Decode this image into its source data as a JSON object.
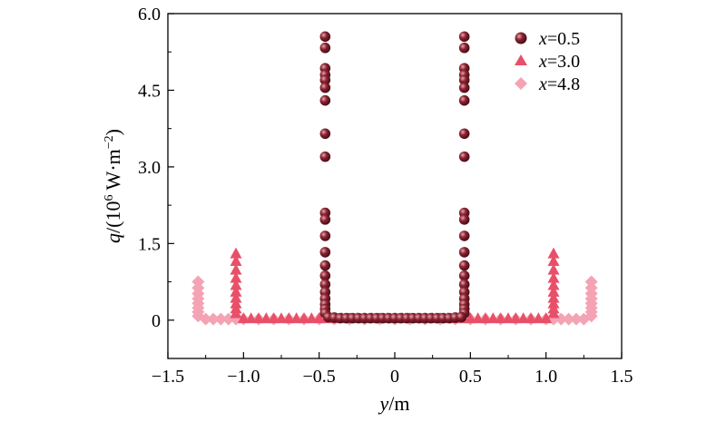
{
  "chart_data": {
    "type": "scatter",
    "xlabel": {
      "var": "y",
      "unit": "/m"
    },
    "ylabel": {
      "var": "q",
      "unit_prefix": "/(10",
      "unit_exp": "6",
      "unit_mid": " W·m",
      "unit_exp2": "−2",
      "unit_suffix": ")"
    },
    "xlim": [
      -1.5,
      1.5
    ],
    "ylim": [
      -0.75,
      6.0
    ],
    "xticks": [
      -1.5,
      -1.0,
      -0.5,
      0,
      0.5,
      1.0,
      1.5
    ],
    "xtick_labels": [
      "−1.5",
      "−1.0",
      "−0.5",
      "0",
      "0.5",
      "1.0",
      "1.5"
    ],
    "yticks": [
      0,
      1.5,
      3.0,
      4.5,
      6.0
    ],
    "ytick_labels": [
      "0",
      "1.5",
      "3.0",
      "4.5",
      "6.0"
    ],
    "grid": false,
    "legend_position": "top-right",
    "series": [
      {
        "name": "x=0.5",
        "legend_var": "x",
        "legend_val": "=0.5",
        "marker": "sphere",
        "color": "#7a1e2a",
        "points": [
          [
            -0.46,
            5.55
          ],
          [
            -0.46,
            5.33
          ],
          [
            -0.46,
            4.93
          ],
          [
            -0.46,
            4.8
          ],
          [
            -0.46,
            4.7
          ],
          [
            -0.46,
            4.55
          ],
          [
            -0.46,
            4.3
          ],
          [
            -0.46,
            3.65
          ],
          [
            -0.46,
            3.2
          ],
          [
            -0.46,
            2.1
          ],
          [
            -0.46,
            1.97
          ],
          [
            -0.46,
            1.65
          ],
          [
            -0.46,
            1.33
          ],
          [
            -0.46,
            1.07
          ],
          [
            -0.46,
            0.87
          ],
          [
            -0.46,
            0.7
          ],
          [
            -0.46,
            0.55
          ],
          [
            -0.46,
            0.42
          ],
          [
            -0.46,
            0.31
          ],
          [
            -0.46,
            0.22
          ],
          [
            -0.46,
            0.14
          ],
          [
            0.46,
            5.55
          ],
          [
            0.46,
            5.33
          ],
          [
            0.46,
            4.93
          ],
          [
            0.46,
            4.8
          ],
          [
            0.46,
            4.7
          ],
          [
            0.46,
            4.55
          ],
          [
            0.46,
            4.3
          ],
          [
            0.46,
            3.65
          ],
          [
            0.46,
            3.2
          ],
          [
            0.46,
            2.1
          ],
          [
            0.46,
            1.97
          ],
          [
            0.46,
            1.65
          ],
          [
            0.46,
            1.33
          ],
          [
            0.46,
            1.07
          ],
          [
            0.46,
            0.87
          ],
          [
            0.46,
            0.7
          ],
          [
            0.46,
            0.55
          ],
          [
            0.46,
            0.42
          ],
          [
            0.46,
            0.31
          ],
          [
            0.46,
            0.22
          ],
          [
            0.46,
            0.14
          ],
          [
            -0.44,
            0.06
          ],
          [
            -0.4,
            0.05
          ],
          [
            -0.36,
            0.04
          ],
          [
            -0.32,
            0.04
          ],
          [
            -0.28,
            0.04
          ],
          [
            -0.24,
            0.04
          ],
          [
            -0.2,
            0.04
          ],
          [
            -0.16,
            0.04
          ],
          [
            -0.12,
            0.04
          ],
          [
            -0.08,
            0.04
          ],
          [
            -0.04,
            0.04
          ],
          [
            0.0,
            0.04
          ],
          [
            0.04,
            0.04
          ],
          [
            0.08,
            0.04
          ],
          [
            0.12,
            0.04
          ],
          [
            0.16,
            0.04
          ],
          [
            0.2,
            0.04
          ],
          [
            0.24,
            0.04
          ],
          [
            0.28,
            0.04
          ],
          [
            0.32,
            0.04
          ],
          [
            0.36,
            0.04
          ],
          [
            0.4,
            0.05
          ],
          [
            0.44,
            0.06
          ]
        ]
      },
      {
        "name": "x=3.0",
        "legend_var": "x",
        "legend_val": "=3.0",
        "marker": "triangle",
        "color": "#e8506a",
        "points": [
          [
            -1.05,
            1.3
          ],
          [
            -1.05,
            1.15
          ],
          [
            -1.05,
            0.98
          ],
          [
            -1.05,
            0.82
          ],
          [
            -1.05,
            0.68
          ],
          [
            -1.05,
            0.55
          ],
          [
            -1.05,
            0.43
          ],
          [
            -1.05,
            0.32
          ],
          [
            -1.05,
            0.22
          ],
          [
            -1.05,
            0.13
          ],
          [
            1.05,
            1.3
          ],
          [
            1.05,
            1.15
          ],
          [
            1.05,
            0.98
          ],
          [
            1.05,
            0.82
          ],
          [
            1.05,
            0.68
          ],
          [
            1.05,
            0.55
          ],
          [
            1.05,
            0.43
          ],
          [
            1.05,
            0.32
          ],
          [
            1.05,
            0.22
          ],
          [
            1.05,
            0.13
          ],
          [
            -1.0,
            0.03
          ],
          [
            -0.95,
            0.03
          ],
          [
            -0.9,
            0.03
          ],
          [
            -0.85,
            0.03
          ],
          [
            -0.8,
            0.03
          ],
          [
            -0.75,
            0.03
          ],
          [
            -0.7,
            0.03
          ],
          [
            -0.65,
            0.03
          ],
          [
            -0.6,
            0.03
          ],
          [
            -0.55,
            0.03
          ],
          [
            -0.5,
            0.03
          ],
          [
            -0.45,
            0.03
          ],
          [
            -0.4,
            0.03
          ],
          [
            -0.35,
            0.03
          ],
          [
            -0.3,
            0.03
          ],
          [
            -0.25,
            0.03
          ],
          [
            -0.2,
            0.03
          ],
          [
            -0.15,
            0.03
          ],
          [
            -0.1,
            0.03
          ],
          [
            -0.05,
            0.03
          ],
          [
            0.0,
            0.03
          ],
          [
            0.05,
            0.03
          ],
          [
            0.1,
            0.03
          ],
          [
            0.15,
            0.03
          ],
          [
            0.2,
            0.03
          ],
          [
            0.25,
            0.03
          ],
          [
            0.3,
            0.03
          ],
          [
            0.35,
            0.03
          ],
          [
            0.4,
            0.03
          ],
          [
            0.45,
            0.03
          ],
          [
            0.5,
            0.03
          ],
          [
            0.55,
            0.03
          ],
          [
            0.6,
            0.03
          ],
          [
            0.65,
            0.03
          ],
          [
            0.7,
            0.03
          ],
          [
            0.75,
            0.03
          ],
          [
            0.8,
            0.03
          ],
          [
            0.85,
            0.03
          ],
          [
            0.9,
            0.03
          ],
          [
            0.95,
            0.03
          ],
          [
            1.0,
            0.03
          ]
        ]
      },
      {
        "name": "x=4.8",
        "legend_var": "x",
        "legend_val": "=4.8",
        "marker": "diamond",
        "color": "#f4a3b4",
        "points": [
          [
            -1.3,
            0.75
          ],
          [
            -1.3,
            0.63
          ],
          [
            -1.3,
            0.52
          ],
          [
            -1.3,
            0.42
          ],
          [
            -1.3,
            0.33
          ],
          [
            -1.3,
            0.24
          ],
          [
            -1.3,
            0.16
          ],
          [
            -1.3,
            0.08
          ],
          [
            1.3,
            0.75
          ],
          [
            1.3,
            0.63
          ],
          [
            1.3,
            0.52
          ],
          [
            1.3,
            0.42
          ],
          [
            1.3,
            0.33
          ],
          [
            1.3,
            0.24
          ],
          [
            1.3,
            0.16
          ],
          [
            1.3,
            0.08
          ],
          [
            -1.25,
            0.02
          ],
          [
            -1.2,
            0.02
          ],
          [
            -1.15,
            0.02
          ],
          [
            -1.1,
            0.02
          ],
          [
            -1.05,
            0.02
          ],
          [
            -1.0,
            0.02
          ],
          [
            -0.9,
            0.02
          ],
          [
            -0.8,
            0.02
          ],
          [
            -0.7,
            0.02
          ],
          [
            -0.6,
            0.02
          ],
          [
            -0.5,
            0.02
          ],
          [
            -0.4,
            0.02
          ],
          [
            -0.3,
            0.02
          ],
          [
            -0.2,
            0.02
          ],
          [
            -0.1,
            0.02
          ],
          [
            0.0,
            0.02
          ],
          [
            0.1,
            0.02
          ],
          [
            0.2,
            0.02
          ],
          [
            0.3,
            0.02
          ],
          [
            0.4,
            0.02
          ],
          [
            0.5,
            0.02
          ],
          [
            0.6,
            0.02
          ],
          [
            0.7,
            0.02
          ],
          [
            0.8,
            0.02
          ],
          [
            0.9,
            0.02
          ],
          [
            1.0,
            0.02
          ],
          [
            1.05,
            0.02
          ],
          [
            1.1,
            0.02
          ],
          [
            1.15,
            0.02
          ],
          [
            1.2,
            0.02
          ],
          [
            1.25,
            0.02
          ]
        ]
      }
    ]
  }
}
